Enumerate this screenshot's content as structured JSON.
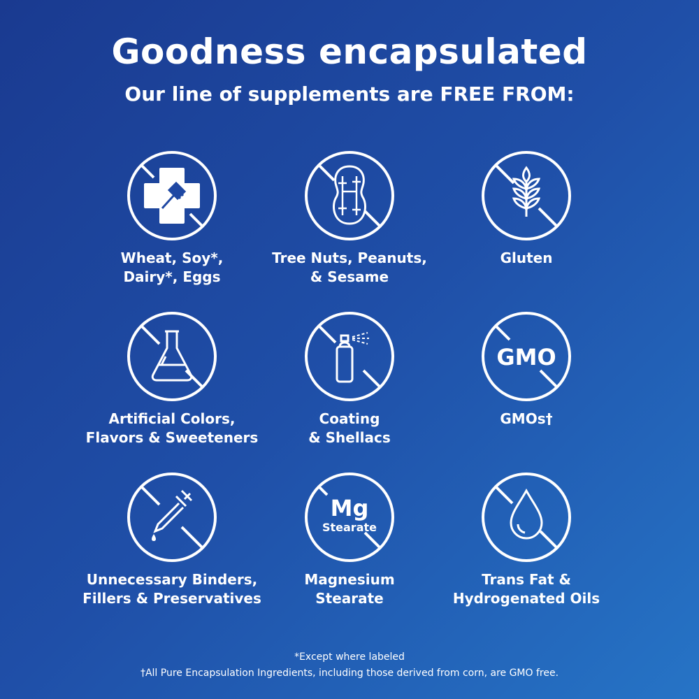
{
  "header": {
    "title": "Goodness encapsulated",
    "subtitle": "Our line of supplements are FREE FROM:"
  },
  "items": [
    {
      "label": "Wheat, Soy*,\nDairy*, Eggs",
      "icon": "allergen-cross-fork-icon"
    },
    {
      "label": "Tree Nuts, Peanuts,\n& Sesame",
      "icon": "peanut-icon"
    },
    {
      "label": "Gluten",
      "icon": "wheat-icon"
    },
    {
      "label": "Artificial Colors,\nFlavors & Sweeteners",
      "icon": "flask-icon"
    },
    {
      "label": "Coating\n& Shellacs",
      "icon": "spray-can-icon"
    },
    {
      "label": "GMOs†",
      "icon": "gmo-icon",
      "icon_text": "GMO"
    },
    {
      "label": "Unnecessary Binders,\nFillers & Preservatives",
      "icon": "dropper-icon"
    },
    {
      "label": "Magnesium\nStearate",
      "icon": "mg-stearate-icon",
      "icon_text": "Mg",
      "icon_subtext": "Stearate"
    },
    {
      "label": "Trans Fat &\nHydrogenated Oils",
      "icon": "oil-drop-icon"
    }
  ],
  "footnotes": {
    "asterisk": "*Except where labeled",
    "dagger": "†All Pure Encapsulation Ingredients, including those derived from corn, are GMO free."
  },
  "colors": {
    "background_start": "#1a3a90",
    "background_end": "#2674c6",
    "foreground": "#ffffff"
  }
}
